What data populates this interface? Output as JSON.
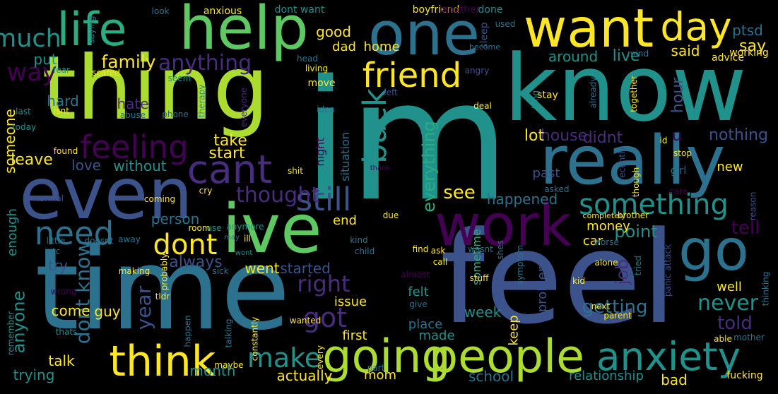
{
  "background": "#000000",
  "palette": {
    "dark_purple": "#440154",
    "indigo": "#472d7b",
    "slate_blue": "#3b528b",
    "steel_blue": "#2c728e",
    "teal": "#21918c",
    "sea_green": "#28ae80",
    "green": "#5ec962",
    "lime": "#addc30",
    "yellow": "#fde725"
  },
  "words": [
    {
      "text": "im",
      "color": "#21918c",
      "vertical": false
    },
    {
      "text": "know",
      "color": "#21918c",
      "vertical": false
    },
    {
      "text": "thing",
      "color": "#addc30",
      "vertical": false
    },
    {
      "text": "feel",
      "color": "#3b528b",
      "vertical": false
    },
    {
      "text": "time",
      "color": "#2c728e",
      "vertical": false
    },
    {
      "text": "even",
      "color": "#3b528b",
      "vertical": false
    },
    {
      "text": "help",
      "color": "#5ec962",
      "vertical": false
    },
    {
      "text": "one",
      "color": "#2c728e",
      "vertical": false
    },
    {
      "text": "want",
      "color": "#fde725",
      "vertical": false
    },
    {
      "text": "really",
      "color": "#2c728e",
      "vertical": false
    },
    {
      "text": "ive",
      "color": "#5ec962",
      "vertical": false
    },
    {
      "text": "work",
      "color": "#440154",
      "vertical": false
    },
    {
      "text": "go",
      "color": "#2c728e",
      "vertical": false
    },
    {
      "text": "life",
      "color": "#28ae80",
      "vertical": false
    },
    {
      "text": "day",
      "color": "#fde725",
      "vertical": false
    },
    {
      "text": "going",
      "color": "#addc30",
      "vertical": false
    },
    {
      "text": "people",
      "color": "#addc30",
      "vertical": false
    },
    {
      "text": "anxiety",
      "color": "#21918c",
      "vertical": false
    },
    {
      "text": "think",
      "color": "#fde725",
      "vertical": false
    },
    {
      "text": "friend",
      "color": "#fde725",
      "vertical": false
    },
    {
      "text": "cant",
      "color": "#472d7b",
      "vertical": false
    },
    {
      "text": "need",
      "color": "#2c728e",
      "vertical": false
    },
    {
      "text": "feeling",
      "color": "#440154",
      "vertical": false
    },
    {
      "text": "still",
      "color": "#3b528b",
      "vertical": false
    },
    {
      "text": "something",
      "color": "#21918c",
      "vertical": false
    },
    {
      "text": "dont",
      "color": "#fde725",
      "vertical": false
    },
    {
      "text": "back",
      "color": "#21918c",
      "vertical": true
    },
    {
      "text": "much",
      "color": "#21918c",
      "vertical": false
    },
    {
      "text": "way",
      "color": "#440154",
      "vertical": false
    },
    {
      "text": "anything",
      "color": "#472d7b",
      "vertical": false
    },
    {
      "text": "family",
      "color": "#fde725",
      "vertical": false
    },
    {
      "text": "thought",
      "color": "#472d7b",
      "vertical": false
    },
    {
      "text": "make",
      "color": "#21918c",
      "vertical": false
    },
    {
      "text": "got",
      "color": "#472d7b",
      "vertical": false
    },
    {
      "text": "right",
      "color": "#472d7b",
      "vertical": false
    },
    {
      "text": "never",
      "color": "#21918c",
      "vertical": false
    },
    {
      "text": "told",
      "color": "#472d7b",
      "vertical": false
    },
    {
      "text": "tell",
      "color": "#440154",
      "vertical": false
    },
    {
      "text": "job",
      "color": "#472d7b",
      "vertical": true
    },
    {
      "text": "year",
      "color": "#3b528b",
      "vertical": true
    },
    {
      "text": "dont know",
      "color": "#2c728e",
      "vertical": true
    },
    {
      "text": "anyone",
      "color": "#21918c",
      "vertical": true
    },
    {
      "text": "everything",
      "color": "#28ae80",
      "vertical": true
    },
    {
      "text": "always",
      "color": "#3b528b",
      "vertical": false
    },
    {
      "text": "getting",
      "color": "#2c728e",
      "vertical": false
    },
    {
      "text": "see",
      "color": "#fde725",
      "vertical": false
    },
    {
      "text": "happened",
      "color": "#2c728e",
      "vertical": false
    },
    {
      "text": "point",
      "color": "#21918c",
      "vertical": false
    },
    {
      "text": "say",
      "color": "#fde725",
      "vertical": false
    },
    {
      "text": "said",
      "color": "#fde725",
      "vertical": false
    },
    {
      "text": "around",
      "color": "#21918c",
      "vertical": false
    },
    {
      "text": "live",
      "color": "#21918c",
      "vertical": false
    },
    {
      "text": "hour",
      "color": "#3b528b",
      "vertical": true
    },
    {
      "text": "nothing",
      "color": "#3b528b",
      "vertical": false
    },
    {
      "text": "house",
      "color": "#472d7b",
      "vertical": false
    },
    {
      "text": "didnt",
      "color": "#472d7b",
      "vertical": false
    },
    {
      "text": "lot",
      "color": "#fde725",
      "vertical": false
    },
    {
      "text": "take",
      "color": "#fde725",
      "vertical": false
    },
    {
      "text": "start",
      "color": "#fde725",
      "vertical": false
    },
    {
      "text": "leave",
      "color": "#fde725",
      "vertical": false
    },
    {
      "text": "love",
      "color": "#3b528b",
      "vertical": false
    },
    {
      "text": "without",
      "color": "#21918c",
      "vertical": false
    },
    {
      "text": "hard",
      "color": "#2c728e",
      "vertical": false
    },
    {
      "text": "hate",
      "color": "#472d7b",
      "vertical": false
    },
    {
      "text": "put",
      "color": "#21918c",
      "vertical": false
    },
    {
      "text": "good",
      "color": "#fde725",
      "vertical": false
    },
    {
      "text": "home",
      "color": "#fde725",
      "vertical": false
    },
    {
      "text": "dad",
      "color": "#fde725",
      "vertical": false
    },
    {
      "text": "ptsd",
      "color": "#2c728e",
      "vertical": false
    },
    {
      "text": "someone",
      "color": "#fde725",
      "vertical": true
    },
    {
      "text": "enough",
      "color": "#21918c",
      "vertical": true
    },
    {
      "text": "trying",
      "color": "#21918c",
      "vertical": false
    },
    {
      "text": "talk",
      "color": "#fde725",
      "vertical": false
    },
    {
      "text": "come",
      "color": "#fde725",
      "vertical": false
    },
    {
      "text": "guy",
      "color": "#fde725",
      "vertical": false
    },
    {
      "text": "went",
      "color": "#fde725",
      "vertical": false
    },
    {
      "text": "started",
      "color": "#3b528b",
      "vertical": false
    },
    {
      "text": "try",
      "color": "#3b528b",
      "vertical": false
    },
    {
      "text": "person",
      "color": "#2c728e",
      "vertical": false
    },
    {
      "text": "money",
      "color": "#fde725",
      "vertical": false
    },
    {
      "text": "car",
      "color": "#fde725",
      "vertical": false
    },
    {
      "text": "end",
      "color": "#fde725",
      "vertical": false
    },
    {
      "text": "felt",
      "color": "#21918c",
      "vertical": false
    },
    {
      "text": "issue",
      "color": "#fde725",
      "vertical": false
    },
    {
      "text": "place",
      "color": "#2c728e",
      "vertical": false
    },
    {
      "text": "made",
      "color": "#21918c",
      "vertical": false
    },
    {
      "text": "first",
      "color": "#fde725",
      "vertical": false
    },
    {
      "text": "week",
      "color": "#21918c",
      "vertical": false
    },
    {
      "text": "keep",
      "color": "#fde725",
      "vertical": true
    },
    {
      "text": "problem",
      "color": "#3b528b",
      "vertical": true
    },
    {
      "text": "well",
      "color": "#fde725",
      "vertical": false
    },
    {
      "text": "month",
      "color": "#21918c",
      "vertical": false
    },
    {
      "text": "actually",
      "color": "#fde725",
      "vertical": false
    },
    {
      "text": "mom",
      "color": "#fde725",
      "vertical": false
    },
    {
      "text": "school",
      "color": "#2c728e",
      "vertical": false
    },
    {
      "text": "relationship",
      "color": "#21918c",
      "vertical": false
    },
    {
      "text": "bad",
      "color": "#fde725",
      "vertical": false
    },
    {
      "text": "new",
      "color": "#fde725",
      "vertical": false
    },
    {
      "text": "past",
      "color": "#3b528b",
      "vertical": false
    },
    {
      "text": "sometime",
      "color": "#28ae80",
      "vertical": true
    },
    {
      "text": "situation",
      "color": "#2c728e",
      "vertical": true
    },
    {
      "text": "night",
      "color": "#440154",
      "vertical": true
    },
    {
      "text": "saying",
      "color": "#2c728e",
      "vertical": true
    },
    {
      "text": "look",
      "color": "#2c728e",
      "vertical": false
    },
    {
      "text": "anxious",
      "color": "#fde725",
      "vertical": false
    },
    {
      "text": "dont want",
      "color": "#21918c",
      "vertical": false
    },
    {
      "text": "boyfriend",
      "color": "#fde725",
      "vertical": false
    },
    {
      "text": "another",
      "color": "#440154",
      "vertical": false
    },
    {
      "text": "done",
      "color": "#21918c",
      "vertical": false
    },
    {
      "text": "used",
      "color": "#2c728e",
      "vertical": false
    },
    {
      "text": "sleep",
      "color": "#3b528b",
      "vertical": true
    },
    {
      "text": "become",
      "color": "#2c728e",
      "vertical": false
    },
    {
      "text": "working",
      "color": "#fde725",
      "vertical": false
    },
    {
      "text": "mind",
      "color": "#2c728e",
      "vertical": false
    },
    {
      "text": "advice",
      "color": "#fde725",
      "vertical": false
    },
    {
      "text": "fear",
      "color": "#21918c",
      "vertical": false
    },
    {
      "text": "scared",
      "color": "#fde725",
      "vertical": false
    },
    {
      "text": "head",
      "color": "#2c728e",
      "vertical": false
    },
    {
      "text": "living",
      "color": "#fde725",
      "vertical": false
    },
    {
      "text": "angry",
      "color": "#3b528b",
      "vertical": false
    },
    {
      "text": "move",
      "color": "#fde725",
      "vertical": false
    },
    {
      "text": "left",
      "color": "#3b528b",
      "vertical": false
    },
    {
      "text": "idea",
      "color": "#2c728e",
      "vertical": false
    },
    {
      "text": "deal",
      "color": "#fde725",
      "vertical": false
    },
    {
      "text": "stay",
      "color": "#fde725",
      "vertical": false
    },
    {
      "text": "long",
      "color": "#21918c",
      "vertical": true
    },
    {
      "text": "already",
      "color": "#2c728e",
      "vertical": true
    },
    {
      "text": "together",
      "color": "#fde725",
      "vertical": true
    },
    {
      "text": "seem",
      "color": "#21918c",
      "vertical": false
    },
    {
      "text": "therapy",
      "color": "#21918c",
      "vertical": true
    },
    {
      "text": "everyone",
      "color": "#472d7b",
      "vertical": true
    },
    {
      "text": "last",
      "color": "#21918c",
      "vertical": false
    },
    {
      "text": "isnt",
      "color": "#fde725",
      "vertical": false
    },
    {
      "text": "abuse",
      "color": "#2c728e",
      "vertical": false
    },
    {
      "text": "phone",
      "color": "#2c728e",
      "vertical": false
    },
    {
      "text": "today",
      "color": "#21918c",
      "vertical": false
    },
    {
      "text": "found",
      "color": "#fde725",
      "vertical": false
    },
    {
      "text": "shit",
      "color": "#fde725",
      "vertical": false
    },
    {
      "text": "thank",
      "color": "#440154",
      "vertical": false
    },
    {
      "text": "id",
      "color": "#fde725",
      "vertical": false
    },
    {
      "text": "stop",
      "color": "#fde725",
      "vertical": false
    },
    {
      "text": "girl",
      "color": "#2c728e",
      "vertical": false
    },
    {
      "text": "care",
      "color": "#440154",
      "vertical": false
    },
    {
      "text": "recently",
      "color": "#3b528b",
      "vertical": true
    },
    {
      "text": "though",
      "color": "#fde725",
      "vertical": true
    },
    {
      "text": "reason",
      "color": "#3b528b",
      "vertical": true
    },
    {
      "text": "u",
      "color": "#440154",
      "vertical": false
    },
    {
      "text": "asked",
      "color": "#2c728e",
      "vertical": false
    },
    {
      "text": "cry",
      "color": "#fde725",
      "vertical": false
    },
    {
      "text": "normal",
      "color": "#3b528b",
      "vertical": false
    },
    {
      "text": "coming",
      "color": "#fde725",
      "vertical": false
    },
    {
      "text": "use",
      "color": "#21918c",
      "vertical": false
    },
    {
      "text": "anymore",
      "color": "#21918c",
      "vertical": false
    },
    {
      "text": "little",
      "color": "#2c728e",
      "vertical": false
    },
    {
      "text": "doesnt",
      "color": "#2c728e",
      "vertical": false
    },
    {
      "text": "due",
      "color": "#fde725",
      "vertical": false
    },
    {
      "text": "completely",
      "color": "#fde725",
      "vertical": false
    },
    {
      "text": "brother",
      "color": "#fde725",
      "vertical": false
    },
    {
      "text": "room",
      "color": "#fde725",
      "vertical": false
    },
    {
      "text": "ill",
      "color": "#fde725",
      "vertical": false
    },
    {
      "text": "away",
      "color": "#2c728e",
      "vertical": false
    },
    {
      "text": "etc",
      "color": "#2c728e",
      "vertical": false
    },
    {
      "text": "may",
      "color": "#2c728e",
      "vertical": false
    },
    {
      "text": "wont",
      "color": "#21918c",
      "vertical": false
    },
    {
      "text": "kind",
      "color": "#2c728e",
      "vertical": false
    },
    {
      "text": "child",
      "color": "#2c728e",
      "vertical": false
    },
    {
      "text": "ask",
      "color": "#fde725",
      "vertical": false
    },
    {
      "text": "find",
      "color": "#fde725",
      "vertical": false
    },
    {
      "text": "wasnt",
      "color": "#2c728e",
      "vertical": false
    },
    {
      "text": "shes",
      "color": "#2c728e",
      "vertical": true
    },
    {
      "text": "symptom",
      "color": "#2c728e",
      "vertical": true
    },
    {
      "text": "worse",
      "color": "#2c728e",
      "vertical": false
    },
    {
      "text": "alone",
      "color": "#fde725",
      "vertical": false
    },
    {
      "text": "making",
      "color": "#fde725",
      "vertical": false
    },
    {
      "text": "sick",
      "color": "#2c728e",
      "vertical": false
    },
    {
      "text": "call",
      "color": "#fde725",
      "vertical": false
    },
    {
      "text": "almost",
      "color": "#440154",
      "vertical": false
    },
    {
      "text": "tried",
      "color": "#2c728e",
      "vertical": true
    },
    {
      "text": "panic attack",
      "color": "#3b528b",
      "vertical": true
    },
    {
      "text": "thinking",
      "color": "#2c728e",
      "vertical": true
    },
    {
      "text": "wrong",
      "color": "#440154",
      "vertical": false
    },
    {
      "text": "probably",
      "color": "#fde725",
      "vertical": true
    },
    {
      "text": "tldr",
      "color": "#fde725",
      "vertical": false
    },
    {
      "text": "stuff",
      "color": "#fde725",
      "vertical": false
    },
    {
      "text": "kid",
      "color": "#fde725",
      "vertical": false
    },
    {
      "text": "next",
      "color": "#fde725",
      "vertical": false
    },
    {
      "text": "remember",
      "color": "#21918c",
      "vertical": true
    },
    {
      "text": "happen",
      "color": "#2c728e",
      "vertical": true
    },
    {
      "text": "talking",
      "color": "#2c728e",
      "vertical": true
    },
    {
      "text": "give",
      "color": "#2c728e",
      "vertical": false
    },
    {
      "text": "parent",
      "color": "#fde725",
      "vertical": false
    },
    {
      "text": "thats",
      "color": "#21918c",
      "vertical": false
    },
    {
      "text": "constantly",
      "color": "#fde725",
      "vertical": true
    },
    {
      "text": "wanted",
      "color": "#fde725",
      "vertical": false
    },
    {
      "text": "every",
      "color": "#fde725",
      "vertical": true
    },
    {
      "text": "able",
      "color": "#fde725",
      "vertical": false
    },
    {
      "text": "mother",
      "color": "#2c728e",
      "vertical": false
    },
    {
      "text": "maybe",
      "color": "#fde725",
      "vertical": false
    },
    {
      "text": "part",
      "color": "#2c728e",
      "vertical": false
    },
    {
      "text": "fucking",
      "color": "#fde725",
      "vertical": false
    }
  ]
}
